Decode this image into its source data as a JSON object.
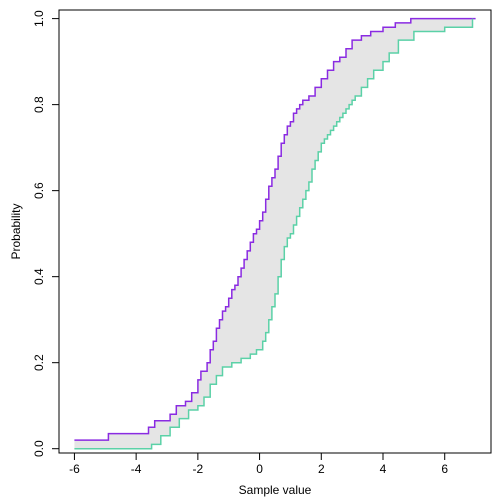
{
  "chart_data": {
    "type": "line",
    "title": "",
    "xlabel": "Sample value",
    "ylabel": "Probability",
    "xlim": [
      -6.5,
      7.5
    ],
    "ylim": [
      -0.01,
      1.02
    ],
    "xticks": [
      -6,
      -4,
      -2,
      0,
      2,
      4,
      6
    ],
    "yticks": [
      0.0,
      0.2,
      0.4,
      0.6,
      0.8,
      1.0
    ],
    "xtick_labels": [
      "-6",
      "-4",
      "-2",
      "0",
      "2",
      "4",
      "6"
    ],
    "ytick_labels": [
      "0.0",
      "0.2",
      "0.4",
      "0.6",
      "0.8",
      "1.0"
    ],
    "grid": false,
    "band_fill": "#e5e5e5",
    "series": [
      {
        "color": "#8a2be2",
        "x": [
          -6.0,
          -4.9,
          -3.6,
          -3.4,
          -2.9,
          -2.7,
          -2.4,
          -2.2,
          -2.0,
          -1.9,
          -1.7,
          -1.6,
          -1.5,
          -1.4,
          -1.3,
          -1.2,
          -1.1,
          -1.0,
          -0.9,
          -0.8,
          -0.7,
          -0.6,
          -0.5,
          -0.4,
          -0.3,
          -0.2,
          -0.1,
          0.0,
          0.1,
          0.2,
          0.3,
          0.4,
          0.5,
          0.6,
          0.7,
          0.8,
          0.9,
          1.0,
          1.1,
          1.2,
          1.3,
          1.4,
          1.6,
          1.8,
          2.0,
          2.2,
          2.4,
          2.6,
          2.8,
          3.0,
          3.3,
          3.6,
          4.0,
          4.4,
          4.9,
          7.0
        ],
        "y": [
          0.02,
          0.035,
          0.05,
          0.065,
          0.08,
          0.1,
          0.11,
          0.13,
          0.16,
          0.18,
          0.2,
          0.23,
          0.25,
          0.28,
          0.3,
          0.32,
          0.33,
          0.35,
          0.37,
          0.38,
          0.4,
          0.42,
          0.44,
          0.46,
          0.48,
          0.5,
          0.51,
          0.53,
          0.55,
          0.58,
          0.61,
          0.63,
          0.65,
          0.68,
          0.71,
          0.73,
          0.75,
          0.76,
          0.78,
          0.79,
          0.8,
          0.81,
          0.82,
          0.84,
          0.86,
          0.88,
          0.9,
          0.91,
          0.93,
          0.95,
          0.96,
          0.97,
          0.98,
          0.99,
          1.0,
          1.0
        ]
      },
      {
        "color": "#5bd1a7",
        "x": [
          -6.0,
          -3.5,
          -3.2,
          -2.9,
          -2.6,
          -2.3,
          -2.0,
          -1.8,
          -1.6,
          -1.4,
          -1.2,
          -0.9,
          -0.6,
          -0.3,
          -0.1,
          0.1,
          0.2,
          0.3,
          0.4,
          0.5,
          0.6,
          0.7,
          0.8,
          0.9,
          1.0,
          1.1,
          1.2,
          1.3,
          1.4,
          1.5,
          1.6,
          1.7,
          1.8,
          1.9,
          2.0,
          2.1,
          2.2,
          2.3,
          2.4,
          2.5,
          2.6,
          2.7,
          2.8,
          2.9,
          3.0,
          3.1,
          3.3,
          3.5,
          3.7,
          4.0,
          4.2,
          4.5,
          5.0,
          6.0,
          6.9
        ],
        "y": [
          0.0,
          0.01,
          0.03,
          0.05,
          0.07,
          0.09,
          0.1,
          0.12,
          0.15,
          0.17,
          0.19,
          0.2,
          0.21,
          0.22,
          0.23,
          0.25,
          0.27,
          0.3,
          0.33,
          0.36,
          0.4,
          0.44,
          0.47,
          0.49,
          0.5,
          0.52,
          0.54,
          0.56,
          0.58,
          0.6,
          0.62,
          0.65,
          0.67,
          0.69,
          0.71,
          0.72,
          0.73,
          0.74,
          0.75,
          0.76,
          0.77,
          0.78,
          0.79,
          0.8,
          0.81,
          0.82,
          0.84,
          0.86,
          0.88,
          0.9,
          0.92,
          0.95,
          0.97,
          0.98,
          1.0
        ]
      }
    ]
  }
}
